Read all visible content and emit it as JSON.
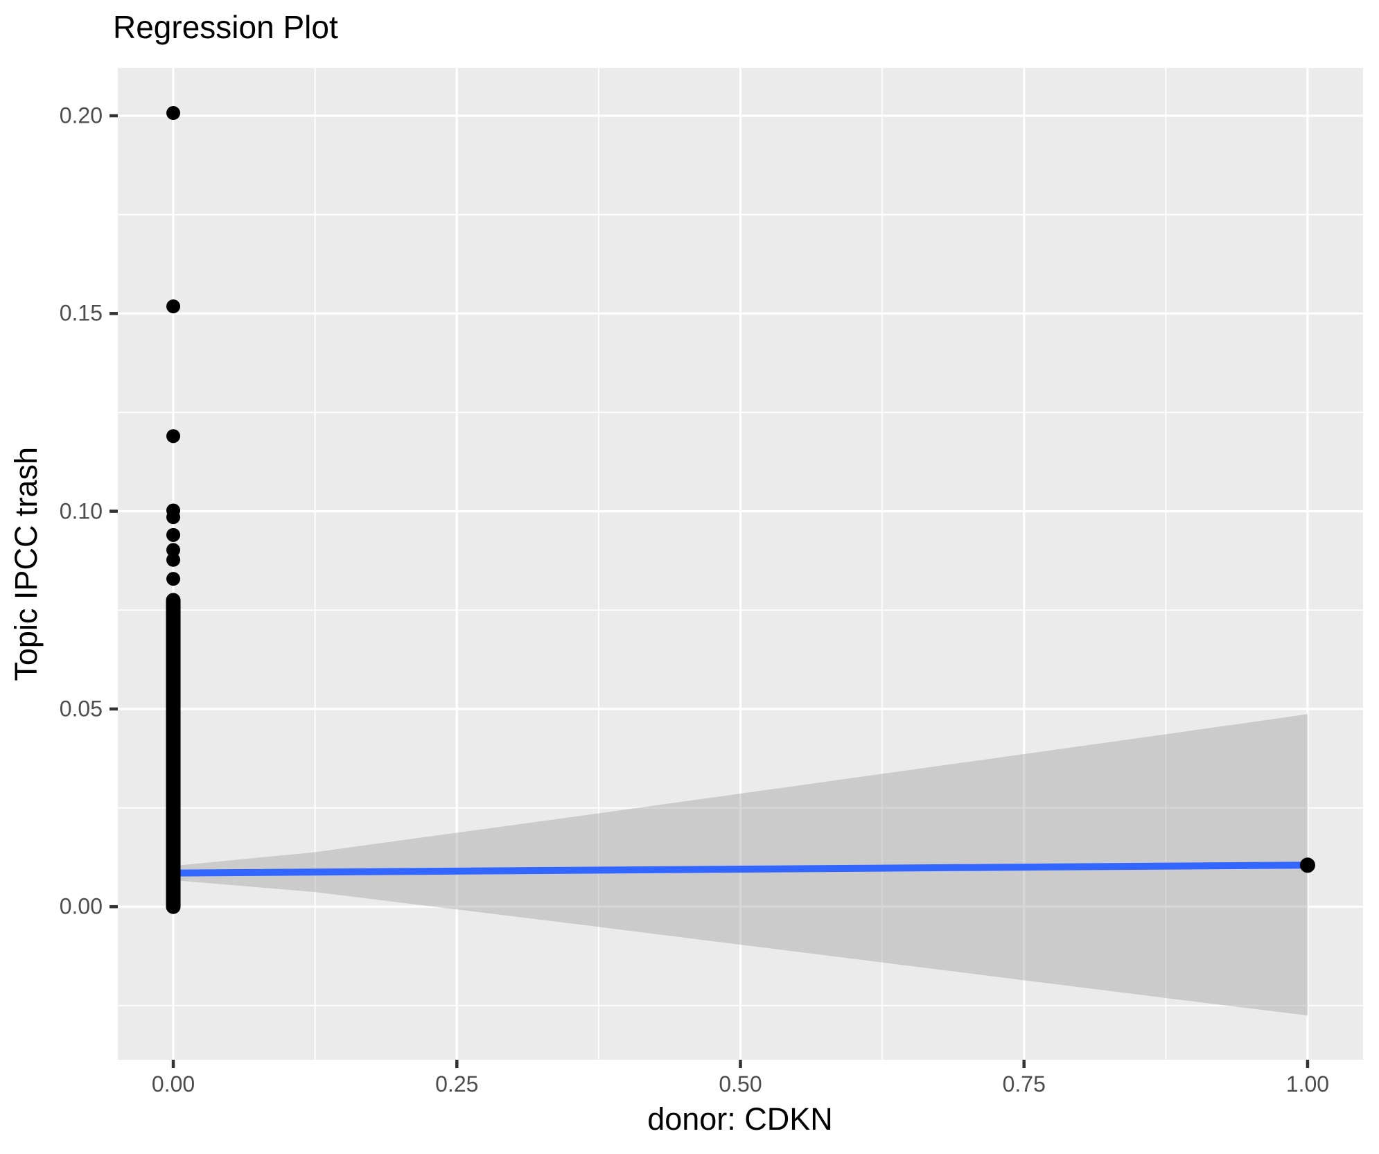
{
  "chart_data": {
    "type": "scatter",
    "title": "Regression Plot",
    "xlabel": "donor: CDKN",
    "ylabel": "Topic IPCC trash",
    "x_ticks": [
      0.0,
      0.25,
      0.5,
      0.75,
      1.0
    ],
    "x_tick_labels": [
      "0.00",
      "0.25",
      "0.50",
      "0.75",
      "1.00"
    ],
    "y_ticks": [
      0.0,
      0.05,
      0.1,
      0.15,
      0.2
    ],
    "y_tick_labels": [
      "0.00",
      "0.05",
      "0.10",
      "0.15",
      "0.20"
    ],
    "x_minor_gridlines": [
      0.125,
      0.375,
      0.625,
      0.875
    ],
    "y_minor_gridlines": [
      -0.025,
      0.025,
      0.075,
      0.125,
      0.175
    ],
    "xlim": [
      -0.0489,
      1.0489
    ],
    "ylim": [
      -0.0387,
      0.2121
    ],
    "grid": true,
    "legend": false,
    "points": {
      "x0_dense_column": {
        "x": 0.0,
        "y_range": [
          0.0,
          0.0775
        ],
        "description": "many overlapping points at x=0 forming a solid column from 0.000 to ~0.078"
      },
      "x0_discrete_y": [
        0.0829,
        0.0877,
        0.0902,
        0.094,
        0.0985,
        0.1002,
        0.119,
        0.1518,
        0.2007
      ],
      "x1_point": {
        "x": 1.0,
        "y": 0.0105
      }
    },
    "regression_line": {
      "x": [
        0.0,
        1.0
      ],
      "y": [
        0.0085,
        0.0105
      ]
    },
    "confidence_band": {
      "x": [
        0.0,
        0.125,
        0.25,
        0.375,
        0.5,
        0.625,
        0.75,
        0.875,
        1.0
      ],
      "upper": [
        0.0103,
        0.0138,
        0.0187,
        0.0236,
        0.0286,
        0.0336,
        0.0386,
        0.0436,
        0.0487
      ],
      "lower": [
        0.0067,
        0.0037,
        -0.0007,
        -0.0051,
        -0.0096,
        -0.0141,
        -0.0186,
        -0.0231,
        -0.0275
      ]
    },
    "colors": {
      "panel_background": "#EBEBEB",
      "gridline": "#FFFFFF",
      "confidence_band": "rgba(153,153,153,0.39)",
      "regression_line": "#3366FF",
      "points": "#000000",
      "tick_labels": "#4D4D4D",
      "tick_marks": "#333333",
      "title": "#000000"
    }
  }
}
